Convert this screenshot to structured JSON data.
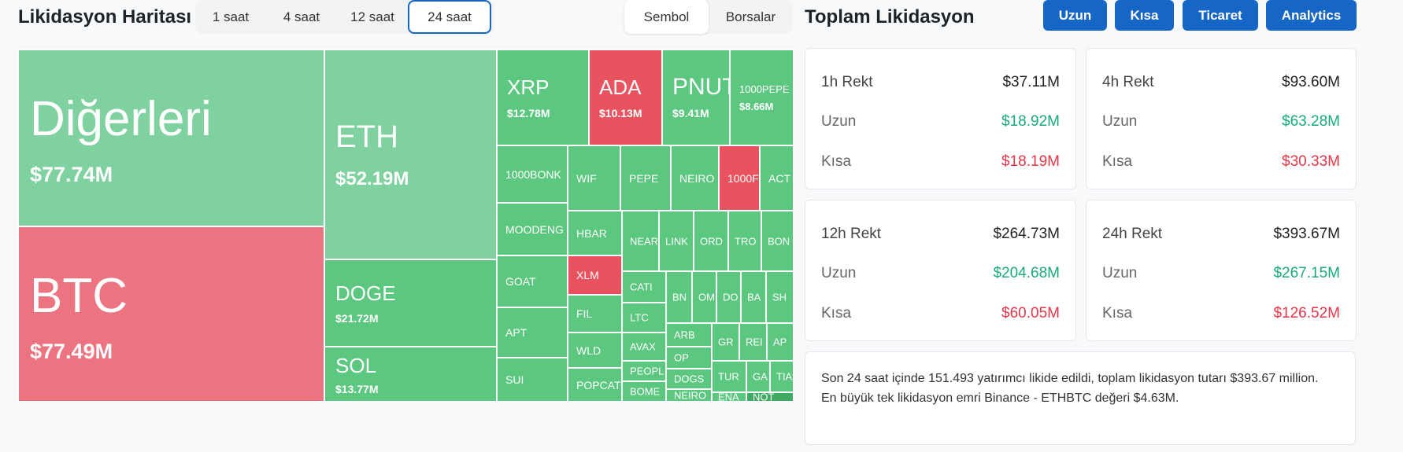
{
  "header": {
    "title": "Likidasyon Haritası",
    "time_tabs": [
      {
        "label": "1 saat",
        "active": false
      },
      {
        "label": "4 saat",
        "active": false
      },
      {
        "label": "12 saat",
        "active": false
      },
      {
        "label": "24 saat",
        "active": true
      }
    ],
    "view_tabs": [
      {
        "label": "Sembol",
        "active": true
      },
      {
        "label": "Borsalar",
        "active": false
      }
    ]
  },
  "treemap": {
    "colors": {
      "long": "#5cc77f",
      "long_light": "#7fd29f",
      "short": "#e8535f",
      "short_light": "#ec7480"
    },
    "tiles": {
      "others": {
        "symbol": "Diğerleri",
        "value": "$77.74M"
      },
      "btc": {
        "symbol": "BTC",
        "value": "$77.49M"
      },
      "eth": {
        "symbol": "ETH",
        "value": "$52.19M"
      },
      "doge": {
        "symbol": "DOGE",
        "value": "$21.72M"
      },
      "sol": {
        "symbol": "SOL",
        "value": "$13.77M"
      },
      "xrp": {
        "symbol": "XRP",
        "value": "$12.78M"
      },
      "ada": {
        "symbol": "ADA",
        "value": "$10.13M"
      },
      "pnut": {
        "symbol": "PNUT",
        "value": "$9.41M"
      },
      "pepe1000": {
        "symbol": "1000PEPE",
        "value": "$8.66M"
      },
      "bonk1000": {
        "symbol": "1000BONK"
      },
      "wif": {
        "symbol": "WIF"
      },
      "pepe": {
        "symbol": "PEPE"
      },
      "neiro": {
        "symbol": "NEIRO"
      },
      "sats1000": {
        "symbol": "1000F"
      },
      "act": {
        "symbol": "ACT"
      },
      "moodeng": {
        "symbol": "MOODENG"
      },
      "hbar": {
        "symbol": "HBAR"
      },
      "near": {
        "symbol": "NEAR"
      },
      "link": {
        "symbol": "LINK"
      },
      "ordi": {
        "symbol": "ORD"
      },
      "trx": {
        "symbol": "TRO"
      },
      "bonk": {
        "symbol": "BON"
      },
      "goat": {
        "symbol": "GOAT"
      },
      "xlm": {
        "symbol": "XLM"
      },
      "cati": {
        "symbol": "CATI"
      },
      "ltc": {
        "symbol": "LTC"
      },
      "bnb": {
        "symbol": "BN"
      },
      "om": {
        "symbol": "OM"
      },
      "dot": {
        "symbol": "DO"
      },
      "bat": {
        "symbol": "BA"
      },
      "shib": {
        "symbol": "SH"
      },
      "apt": {
        "symbol": "APT"
      },
      "fil": {
        "symbol": "FIL"
      },
      "avax": {
        "symbol": "AVAX"
      },
      "arb": {
        "symbol": "ARB"
      },
      "grt": {
        "symbol": "GR"
      },
      "rei": {
        "symbol": "REI"
      },
      "ape": {
        "symbol": "AP"
      },
      "wld": {
        "symbol": "WLD"
      },
      "people": {
        "symbol": "PEOPL"
      },
      "op": {
        "symbol": "OP"
      },
      "dogs": {
        "symbol": "DOGS"
      },
      "turbo": {
        "symbol": "TUR"
      },
      "gala": {
        "symbol": "GA"
      },
      "tia": {
        "symbol": "TIA"
      },
      "sui": {
        "symbol": "SUI"
      },
      "popcat": {
        "symbol": "POPCAT"
      },
      "bome": {
        "symbol": "BOME"
      },
      "neiroeth": {
        "symbol": "NEIRO"
      },
      "ena": {
        "symbol": "ENA"
      },
      "not": {
        "symbol": "NOT"
      }
    }
  },
  "summary": {
    "title": "Toplam Likidasyon",
    "buttons": [
      "Uzun",
      "Kısa",
      "Ticaret",
      "Analytics"
    ],
    "cards": [
      {
        "label": "1h Rekt",
        "total": "$37.11M",
        "long_label": "Uzun",
        "long": "$18.92M",
        "short_label": "Kısa",
        "short": "$18.19M"
      },
      {
        "label": "4h Rekt",
        "total": "$93.60M",
        "long_label": "Uzun",
        "long": "$63.28M",
        "short_label": "Kısa",
        "short": "$30.33M"
      },
      {
        "label": "12h Rekt",
        "total": "$264.73M",
        "long_label": "Uzun",
        "long": "$204.68M",
        "short_label": "Kısa",
        "short": "$60.05M"
      },
      {
        "label": "24h Rekt",
        "total": "$393.67M",
        "long_label": "Uzun",
        "long": "$267.15M",
        "short_label": "Kısa",
        "short": "$126.52M"
      }
    ],
    "note_line1": "Son 24 saat içinde 151.493 yatırımcı likide edildi, toplam likidasyon tutarı $393.67 million.",
    "note_line2": "En büyük tek likidasyon emri Binance - ETHBTC değeri $4.63M."
  }
}
